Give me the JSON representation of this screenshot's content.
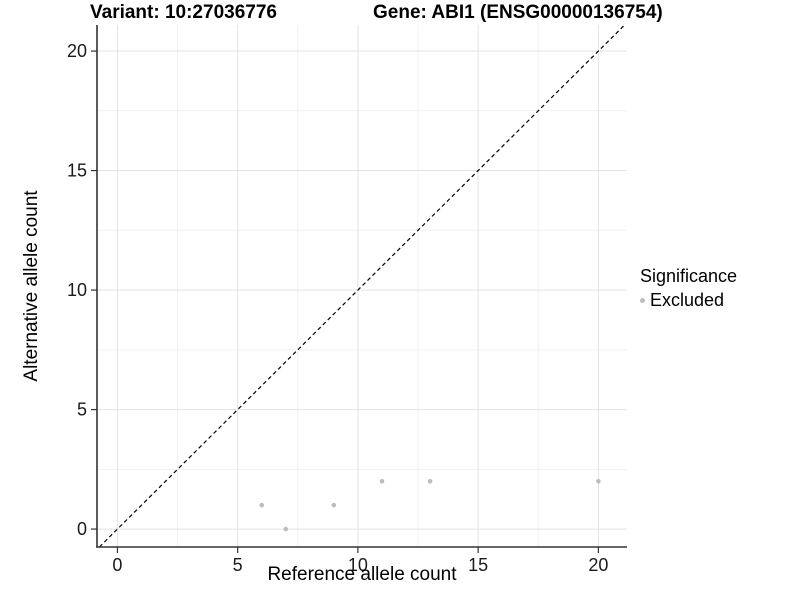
{
  "chart_data": {
    "type": "scatter",
    "title_left": "Variant: 10:27036776",
    "title_right": "Gene: ABI1 (ENSG00000136754)",
    "xlabel": "Reference allele count",
    "ylabel": "Alternative allele count",
    "xlim": [
      -0.85,
      21.19
    ],
    "ylim": [
      -0.75,
      21.09
    ],
    "x_ticks": [
      0,
      5,
      10,
      15,
      20
    ],
    "y_ticks": [
      0,
      5,
      10,
      15,
      20
    ],
    "x_minor": [
      2.5,
      7.5,
      12.5,
      17.5
    ],
    "y_minor": [
      2.5,
      7.5,
      12.5,
      17.5
    ],
    "grid": true,
    "legend_position": "right",
    "series": [
      {
        "name": "Excluded",
        "color": "#bdbdbd",
        "points": [
          [
            6,
            1
          ],
          [
            7,
            0
          ],
          [
            9,
            1
          ],
          [
            11,
            2
          ],
          [
            13,
            2
          ],
          [
            20,
            2
          ]
        ]
      }
    ],
    "abline": {
      "slope": 1,
      "intercept": 0,
      "style": "dashed",
      "color": "#000000"
    },
    "legend": {
      "title": "Significance",
      "items": [
        {
          "label": "Excluded",
          "color": "#bdbdbd"
        }
      ]
    },
    "colors": {
      "grid_major": "#e3e3e3",
      "grid_minor": "#f1f1f1",
      "axis_line": "#333333",
      "tick_mark": "#333333",
      "tick_label": "#1a1a1a",
      "point": "#bdbdbd"
    }
  }
}
